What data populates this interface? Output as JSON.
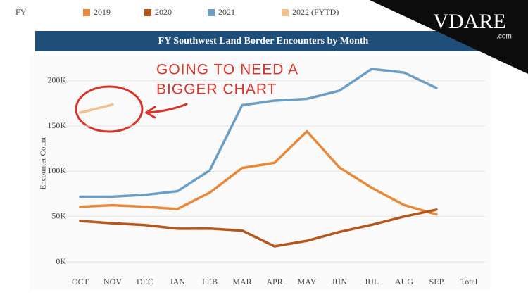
{
  "chart_data": {
    "type": "line",
    "title": "FY Southwest Land Border Encounters by Month",
    "legend_title": "FY",
    "y_label": "Encounter Count",
    "categories": [
      "OCT",
      "NOV",
      "DEC",
      "JAN",
      "FEB",
      "MAR",
      "APR",
      "MAY",
      "JUN",
      "JUL",
      "AUG",
      "SEP",
      "Total"
    ],
    "series": [
      {
        "name": "2019",
        "color": "#e8893a",
        "values": [
          60800,
          62500,
          60800,
          58300,
          76500,
          103700,
          109400,
          144100,
          104300,
          81800,
          62700,
          52300,
          null
        ]
      },
      {
        "name": "2020",
        "color": "#b5561d",
        "values": [
          45100,
          42600,
          40600,
          36600,
          36700,
          34500,
          17100,
          23200,
          33000,
          40900,
          50000,
          57700,
          null
        ]
      },
      {
        "name": "2021",
        "color": "#6d9ec6",
        "values": [
          71900,
          72000,
          74000,
          78000,
          101000,
          173000,
          178000,
          180000,
          189000,
          213000,
          209000,
          192000,
          null
        ]
      },
      {
        "name": "2022 (FYTD)",
        "color": "#f3c08f",
        "values": [
          164800,
          173600,
          null,
          null,
          null,
          null,
          null,
          null,
          null,
          null,
          null,
          null,
          null
        ]
      }
    ],
    "ylim": [
      0,
      220000
    ],
    "yticks": [
      {
        "value": 0,
        "label": "0K"
      },
      {
        "value": 50000,
        "label": "50K"
      },
      {
        "value": 100000,
        "label": "100K"
      },
      {
        "value": 150000,
        "label": "150K"
      },
      {
        "value": 200000,
        "label": "200K"
      }
    ],
    "grid": true,
    "annotation": [
      "GOING TO NEED A",
      "BIGGER CHART"
    ],
    "logo": {
      "name": "VDARE",
      "suffix": ".com"
    }
  }
}
